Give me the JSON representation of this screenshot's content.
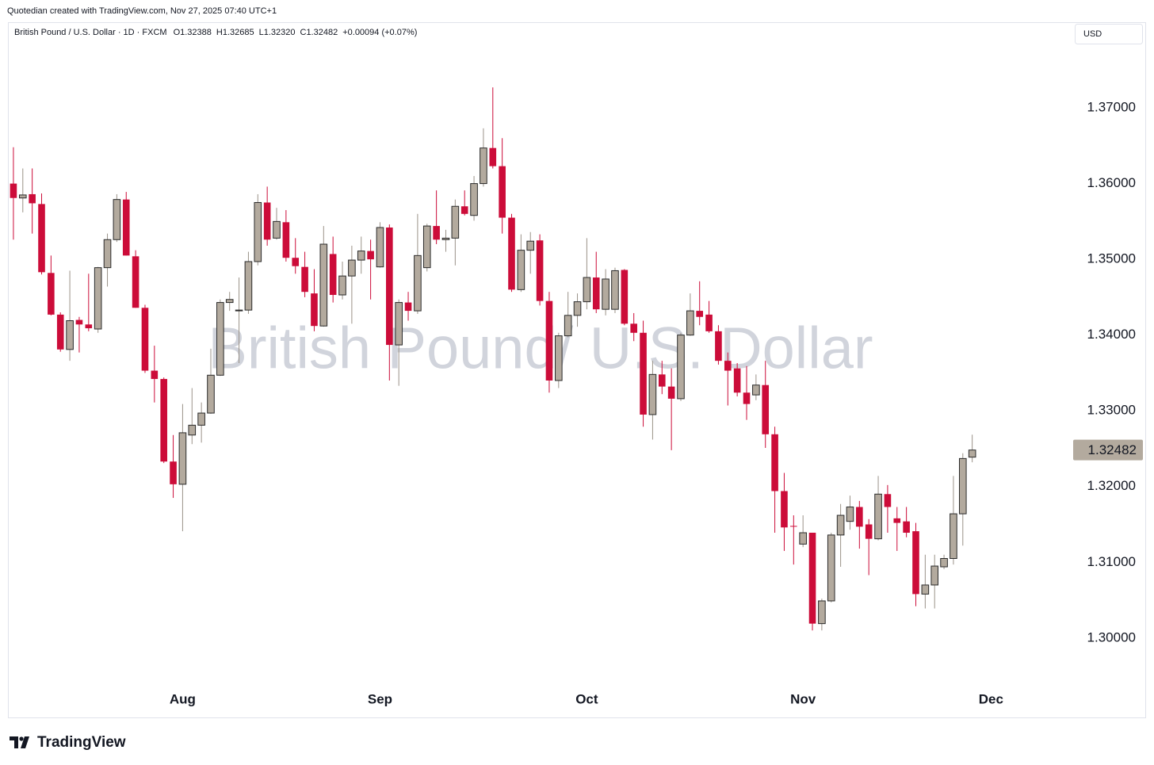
{
  "credit": "Quotedian created with TradingView.com, Nov 27, 2025 07:40 UTC+1",
  "currency_button": "USD",
  "footer": "TradingView",
  "chart_data": {
    "type": "candlestick",
    "title": "British Pound / U.S. Dollar · 1D · FXCM",
    "legend_values": [
      "O1.32388",
      "H1.32685",
      "L1.32320",
      "C1.32482",
      "+0.00094 (+0.07%)"
    ],
    "watermark": "British Pound/ U.S. Dollar",
    "up_color": "#b3aa9e",
    "up_border": "#2b2b2b",
    "down_color": "#cc0c39",
    "categories": [
      null,
      null,
      null,
      null,
      null,
      null,
      null,
      null,
      null,
      null,
      null,
      null,
      null,
      null,
      null,
      null,
      null,
      null,
      "Aug",
      null,
      null,
      null,
      null,
      null,
      null,
      null,
      null,
      null,
      null,
      null,
      null,
      null,
      null,
      null,
      null,
      null,
      null,
      null,
      null,
      "Sep",
      null,
      null,
      null,
      null,
      null,
      null,
      null,
      null,
      null,
      null,
      null,
      null,
      null,
      null,
      null,
      null,
      null,
      null,
      null,
      null,
      null,
      "Oct",
      null,
      null,
      null,
      null,
      null,
      null,
      null,
      null,
      null,
      null,
      null,
      null,
      null,
      null,
      null,
      null,
      null,
      null,
      null,
      null,
      null,
      null,
      "Nov",
      null,
      null,
      null,
      null,
      null,
      null,
      null,
      null,
      null,
      null,
      null,
      null,
      null,
      null,
      null,
      null,
      null,
      null,
      null,
      "Dec"
    ],
    "open": [
      1.36,
      1.3581,
      1.3586,
      1.3573,
      1.3482,
      1.3427,
      1.3381,
      1.342,
      1.3414,
      1.3408,
      1.3489,
      1.3526,
      1.3579,
      1.3504,
      1.3436,
      1.3353,
      1.3342,
      1.3233,
      1.3203,
      1.3268,
      1.3281,
      1.3297,
      1.3347,
      1.3443,
      1.3432,
      1.3433,
      1.3497,
      1.3575,
      1.3528,
      1.3549,
      1.3502,
      1.349,
      1.3455,
      1.3412,
      1.3507,
      1.3453,
      1.3478,
      1.3499,
      1.3511,
      1.349,
      1.3542,
      1.3387,
      1.3443,
      1.3432,
      1.3489,
      1.3544,
      1.3526,
      1.3528,
      1.357,
      1.3558,
      1.36,
      1.3647,
      1.3623,
      1.3555,
      1.346,
      1.3512,
      1.3525,
      1.3445,
      1.334,
      1.3399,
      1.3426,
      1.3444,
      1.3476,
      1.3434,
      1.3434,
      1.3486,
      1.3415,
      1.3403,
      1.3295,
      1.3348,
      1.3332,
      1.3316,
      1.34,
      1.3432,
      1.3427,
      1.3405,
      1.3366,
      1.3356,
      1.3324,
      1.3321,
      1.3334,
      1.3269,
      1.3194,
      1.3148,
      1.3124,
      1.3139,
      1.3019,
      1.3049,
      1.3136,
      1.3154,
      1.3173,
      1.315,
      1.3131,
      1.319,
      1.3158,
      1.3154,
      1.3141,
      1.3058,
      1.307,
      1.3094,
      1.3105,
      1.3164,
      1.32388,
      null,
      null
    ],
    "high": [
      1.3648,
      1.362,
      1.362,
      1.3587,
      1.3505,
      1.343,
      1.3485,
      1.3424,
      1.3481,
      1.349,
      1.3534,
      1.3586,
      1.3589,
      1.3512,
      1.344,
      1.3386,
      1.3344,
      1.3268,
      1.3309,
      1.333,
      1.3311,
      1.3382,
      1.3447,
      1.3457,
      1.3476,
      1.351,
      1.3586,
      1.3596,
      1.3568,
      1.3565,
      1.3528,
      1.351,
      1.3487,
      1.3544,
      1.353,
      1.3497,
      1.3518,
      1.353,
      1.3526,
      1.3549,
      1.3546,
      1.3447,
      1.3457,
      1.356,
      1.3547,
      1.3591,
      1.3539,
      1.3579,
      1.3591,
      1.361,
      1.3673,
      1.3727,
      1.366,
      1.356,
      1.3533,
      1.3536,
      1.3533,
      1.3457,
      1.3403,
      1.3457,
      1.3455,
      1.3528,
      1.351,
      1.3487,
      1.3489,
      1.3487,
      1.3429,
      1.3419,
      1.3366,
      1.3366,
      1.3356,
      1.3403,
      1.3455,
      1.3471,
      1.3445,
      1.3413,
      1.3377,
      1.3363,
      1.3359,
      1.3348,
      1.3366,
      1.3279,
      1.3218,
      1.3162,
      1.3162,
      1.3139,
      1.3052,
      1.3139,
      1.3177,
      1.3188,
      1.3181,
      1.3157,
      1.3214,
      1.3202,
      1.3173,
      1.3173,
      1.3152,
      1.311,
      1.311,
      1.311,
      1.3214,
      1.3244,
      1.32685,
      null,
      null
    ],
    "low": [
      1.3526,
      1.3562,
      1.3534,
      1.348,
      1.3426,
      1.3378,
      1.3366,
      1.3377,
      1.3405,
      1.3403,
      1.3464,
      1.3523,
      1.3505,
      1.3436,
      1.335,
      1.3311,
      1.3231,
      1.3185,
      1.3141,
      1.3256,
      1.3258,
      1.3296,
      1.3346,
      1.3432,
      1.3363,
      1.3428,
      1.3492,
      1.3518,
      1.3526,
      1.3497,
      1.3481,
      1.345,
      1.3405,
      1.3411,
      1.3443,
      1.3447,
      1.3415,
      1.3481,
      1.3447,
      1.3489,
      1.334,
      1.3333,
      1.3419,
      1.3428,
      1.3484,
      1.352,
      1.351,
      1.3492,
      1.3558,
      1.3551,
      1.3596,
      1.362,
      1.3534,
      1.3457,
      1.3457,
      1.3481,
      1.3439,
      1.3324,
      1.333,
      1.3397,
      1.3411,
      1.3434,
      1.3429,
      1.3426,
      1.3429,
      1.3413,
      1.3392,
      1.3279,
      1.3262,
      1.3322,
      1.3248,
      1.3313,
      1.3399,
      1.3413,
      1.3403,
      1.3361,
      1.3307,
      1.3319,
      1.3288,
      1.3314,
      1.3251,
      1.3139,
      1.3115,
      1.3097,
      1.312,
      1.301,
      1.301,
      1.3047,
      1.3094,
      1.3143,
      1.3118,
      1.3083,
      1.3129,
      1.3139,
      1.3115,
      1.3133,
      1.3042,
      1.3039,
      1.3039,
      1.3091,
      1.3097,
      1.3122,
      1.3232,
      null,
      null
    ],
    "close": [
      1.3581,
      1.3585,
      1.3574,
      1.3483,
      1.3427,
      1.3381,
      1.3419,
      1.3414,
      1.3409,
      1.3489,
      1.3526,
      1.3579,
      1.3505,
      1.3436,
      1.3353,
      1.3342,
      1.3233,
      1.3203,
      1.3271,
      1.3281,
      1.3297,
      1.3347,
      1.3443,
      1.3447,
      1.3433,
      1.3497,
      1.3575,
      1.3526,
      1.355,
      1.3502,
      1.3491,
      1.3457,
      1.3412,
      1.352,
      1.3453,
      1.3478,
      1.3499,
      1.3511,
      1.35,
      1.3542,
      1.3387,
      1.3443,
      1.3432,
      1.3505,
      1.3544,
      1.3526,
      1.3528,
      1.357,
      1.356,
      1.36,
      1.3647,
      1.3623,
      1.3555,
      1.346,
      1.3512,
      1.3524,
      1.3445,
      1.334,
      1.3399,
      1.3426,
      1.3444,
      1.3476,
      1.3434,
      1.3474,
      1.3485,
      1.3415,
      1.3403,
      1.3295,
      1.3348,
      1.3332,
      1.3316,
      1.34,
      1.3432,
      1.3424,
      1.3405,
      1.3366,
      1.3353,
      1.3324,
      1.3309,
      1.3334,
      1.3269,
      1.3194,
      1.3146,
      1.3147,
      1.3139,
      1.3019,
      1.3049,
      1.3136,
      1.3162,
      1.3173,
      1.3147,
      1.3131,
      1.319,
      1.3173,
      1.3152,
      1.3139,
      1.3058,
      1.307,
      1.3095,
      1.3105,
      1.3164,
      1.3237,
      1.32482,
      null,
      null
    ],
    "ylim": [
      1.2937,
      1.3811
    ],
    "yticks": [
      {
        "value": 1.3,
        "label": "1.30000"
      },
      {
        "value": 1.31,
        "label": "1.31000"
      },
      {
        "value": 1.32,
        "label": "1.32000"
      },
      {
        "value": 1.33,
        "label": "1.33000"
      },
      {
        "value": 1.34,
        "label": "1.34000"
      },
      {
        "value": 1.35,
        "label": "1.35000"
      },
      {
        "value": 1.36,
        "label": "1.36000"
      },
      {
        "value": 1.37,
        "label": "1.37000"
      }
    ],
    "grid": false
  }
}
